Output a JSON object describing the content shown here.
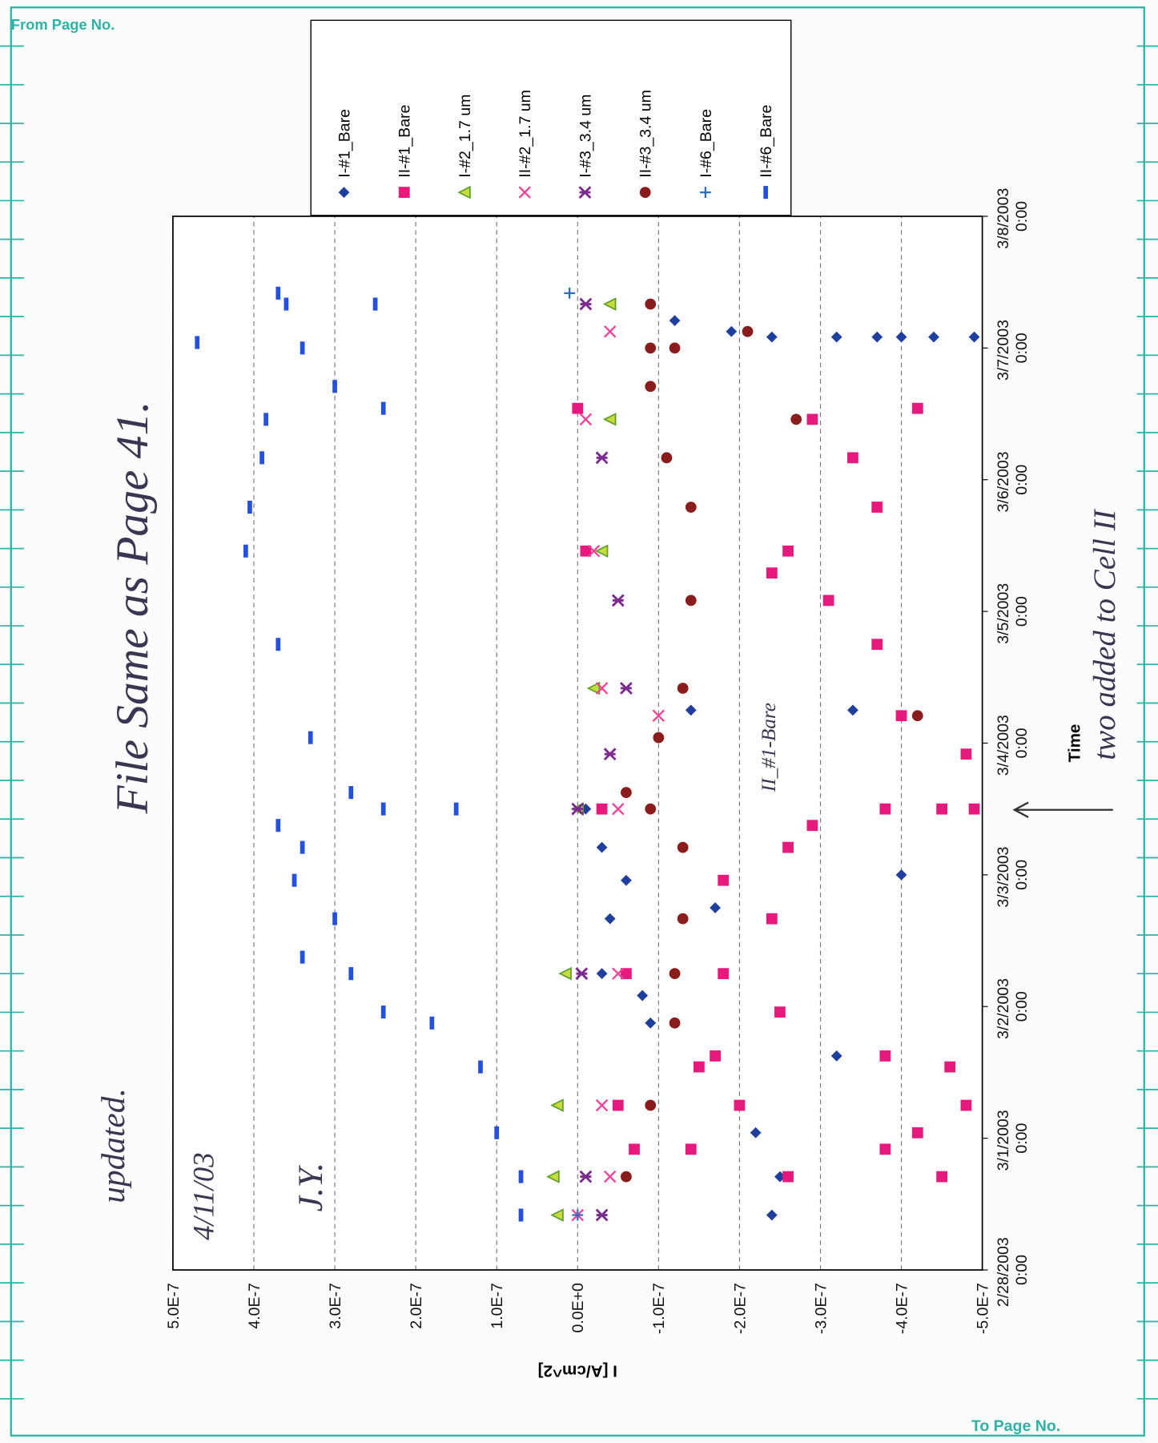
{
  "page": {
    "from_label": "From Page No.",
    "to_label": "To Page No."
  },
  "notes": [
    "File Same as Page 41.",
    "updated.",
    "4/11/03",
    "J.Y.",
    "two added to Cell II",
    "II_#1-Bare"
  ],
  "chart_data": {
    "type": "scatter",
    "x_label": "Time",
    "y_label": "I [A/cm^2]",
    "xlim": [
      "2003-02-28T00:00",
      "2003-03-08T00:00"
    ],
    "xticks": [
      {
        "value": "2003-02-28T00:00",
        "label": "2/28/2003 0:00"
      },
      {
        "value": "2003-03-01T00:00",
        "label": "3/1/2003 0:00"
      },
      {
        "value": "2003-03-02T00:00",
        "label": "3/2/2003 0:00"
      },
      {
        "value": "2003-03-03T00:00",
        "label": "3/3/2003 0:00"
      },
      {
        "value": "2003-03-04T00:00",
        "label": "3/4/2003 0:00"
      },
      {
        "value": "2003-03-05T00:00",
        "label": "3/5/2003 0:00"
      },
      {
        "value": "2003-03-06T00:00",
        "label": "3/6/2003 0:00"
      },
      {
        "value": "2003-03-07T00:00",
        "label": "3/7/2003 0:00"
      },
      {
        "value": "2003-03-08T00:00",
        "label": "3/8/2003 0:00"
      }
    ],
    "ylim": [
      -5e-07,
      5e-07
    ],
    "yticks": [
      {
        "value": 5e-07,
        "label": "5.0E-7"
      },
      {
        "value": 4e-07,
        "label": "4.0E-7"
      },
      {
        "value": 3e-07,
        "label": "3.0E-7"
      },
      {
        "value": 2e-07,
        "label": "2.0E-7"
      },
      {
        "value": 1e-07,
        "label": "1.0E-7"
      },
      {
        "value": 0,
        "label": "0.0E+0"
      },
      {
        "value": -1e-07,
        "label": "-1.0E-7"
      },
      {
        "value": -2e-07,
        "label": "-2.0E-7"
      },
      {
        "value": -3e-07,
        "label": "-3.0E-7"
      },
      {
        "value": -4e-07,
        "label": "-4.0E-7"
      },
      {
        "value": -5e-07,
        "label": "-5.0E-7"
      }
    ],
    "grid": true,
    "series": [
      {
        "name": "I-#1_Bare",
        "color": "#1f3f9f",
        "marker": "diamond",
        "x": [
          "2003-02-28T10:00",
          "2003-02-28T17:00",
          "2003-03-01T01:00",
          "2003-03-01T13:00",
          "2003-03-01T21:00",
          "2003-03-02T02:00",
          "2003-03-02T06:00",
          "2003-03-02T16:00",
          "2003-03-02T23:00",
          "2003-03-03T05:00",
          "2003-03-03T12:00",
          "2003-03-01T15:00",
          "2003-03-02T18:00",
          "2003-03-03T00:00",
          "2003-03-04T06:00",
          "2003-03-04T06:00",
          "2003-03-07T05:00",
          "2003-03-07T03:00",
          "2003-03-07T02:00",
          "2003-03-07T02:00",
          "2003-03-07T02:00",
          "2003-03-07T02:00",
          "2003-03-07T02:00",
          "2003-03-07T02:00"
        ],
        "values": [
          -2.4e-07,
          -2.5e-07,
          -2.2e-07,
          -1.5e-07,
          -9e-08,
          -8e-08,
          -3e-08,
          -4e-08,
          -6e-08,
          -3e-08,
          -1e-08,
          -3.2e-07,
          -1.7e-07,
          -4e-07,
          -1.4e-07,
          -3.4e-07,
          -1.2e-07,
          -1.9e-07,
          -2.4e-07,
          -3.2e-07,
          -3.7e-07,
          -4e-07,
          -4.4e-07,
          -4.9e-07
        ]
      },
      {
        "name": "II-#1_Bare",
        "color": "#e8197d",
        "marker": "square",
        "x": [
          "2003-02-28T17:00",
          "2003-02-28T22:00",
          "2003-03-01T06:00",
          "2003-03-01T13:00",
          "2003-03-01T15:00",
          "2003-03-01T23:00",
          "2003-03-02T06:00",
          "2003-03-02T16:00",
          "2003-03-02T23:00",
          "2003-03-03T05:00",
          "2003-03-03T09:00",
          "2003-03-03T12:00",
          "2003-03-03T12:00",
          "2003-03-03T12:00",
          "2003-03-02T06:00",
          "2003-03-01T06:00",
          "2003-02-28T22:00",
          "2003-03-03T22:00",
          "2003-03-04T05:00",
          "2003-03-04T18:00",
          "2003-03-05T02:00",
          "2003-03-05T11:00",
          "2003-03-05T19:00",
          "2003-03-06T04:00",
          "2003-03-06T11:00",
          "2003-03-06T13:00",
          "2003-03-05T11:00",
          "2003-03-06T13:00",
          "2003-02-28T22:00",
          "2003-02-28T17:00",
          "2003-03-01T13:00",
          "2003-03-01T06:00",
          "2003-03-01T15:00",
          "2003-03-01T01:00",
          "2003-03-03T12:00",
          "2003-03-05T07:00"
        ],
        "values": [
          -2.6e-07,
          -1.4e-07,
          -2e-07,
          -1.5e-07,
          -1.7e-07,
          -2.5e-07,
          -1.8e-07,
          -2.4e-07,
          -1.8e-07,
          -2.6e-07,
          -2.9e-07,
          -3.8e-07,
          -4.5e-07,
          -3e-08,
          -6e-08,
          -5e-08,
          -7e-08,
          -4.8e-07,
          -4e-07,
          -3.7e-07,
          -3.1e-07,
          -2.6e-07,
          -3.7e-07,
          -3.4e-07,
          -2.9e-07,
          -4.2e-07,
          -1e-08,
          0,
          -3.8e-07,
          -4.5e-07,
          -4.6e-07,
          -4.8e-07,
          -3.8e-07,
          -4.2e-07,
          -4.9e-07,
          -2.4e-07
        ]
      },
      {
        "name": "I-#2_1.7 um",
        "color": "#5f9e2c",
        "marker": "triangle",
        "x": [
          "2003-02-28T10:00",
          "2003-02-28T17:00",
          "2003-03-01T06:00",
          "2003-03-02T06:00",
          "2003-03-03T12:00",
          "2003-03-04T10:00",
          "2003-03-05T11:00",
          "2003-03-06T11:00",
          "2003-03-07T08:00"
        ],
        "values": [
          2.5e-08,
          3e-08,
          2.5e-08,
          1.5e-08,
          0,
          -2e-08,
          -3e-08,
          -4e-08,
          -4e-08
        ]
      },
      {
        "name": "II-#2_1.7 um",
        "color": "#f0409a",
        "marker": "x",
        "x": [
          "2003-02-28T10:00",
          "2003-02-28T17:00",
          "2003-03-01T06:00",
          "2003-03-02T06:00",
          "2003-03-03T12:00",
          "2003-03-04T05:00",
          "2003-03-04T10:00",
          "2003-03-05T11:00",
          "2003-03-06T11:00",
          "2003-03-07T03:00"
        ],
        "values": [
          0,
          -4e-08,
          -3e-08,
          -5e-08,
          -5e-08,
          -1e-07,
          -3e-08,
          -2e-08,
          -1e-08,
          -4e-08
        ]
      },
      {
        "name": "I-#3_3.4 um",
        "color": "#7b2a8e",
        "marker": "star",
        "x": [
          "2003-02-28T10:00",
          "2003-02-28T17:00",
          "2003-03-02T06:00",
          "2003-03-03T12:00",
          "2003-03-03T22:00",
          "2003-03-04T10:00",
          "2003-03-05T02:00",
          "2003-03-06T04:00",
          "2003-03-07T08:00"
        ],
        "values": [
          -3e-08,
          -1e-08,
          -5e-09,
          0,
          -4e-08,
          -6e-08,
          -5e-08,
          -3e-08,
          -1e-08
        ]
      },
      {
        "name": "II-#3_3.4 um",
        "color": "#8b1c1c",
        "marker": "circle",
        "x": [
          "2003-02-28T17:00",
          "2003-03-01T06:00",
          "2003-03-01T21:00",
          "2003-03-02T06:00",
          "2003-03-02T16:00",
          "2003-03-03T05:00",
          "2003-03-03T12:00",
          "2003-03-03T15:00",
          "2003-03-04T01:00",
          "2003-03-04T10:00",
          "2003-03-05T02:00",
          "2003-03-05T19:00",
          "2003-03-06T04:00",
          "2003-03-06T17:00",
          "2003-03-07T00:00",
          "2003-03-07T08:00",
          "2003-03-04T05:00",
          "2003-03-06T11:00",
          "2003-03-07T03:00",
          "2003-03-07T00:00"
        ],
        "values": [
          -6e-08,
          -9e-08,
          -1.2e-07,
          -1.2e-07,
          -1.3e-07,
          -1.3e-07,
          -9e-08,
          -6e-08,
          -1e-07,
          -1.3e-07,
          -1.4e-07,
          -1.4e-07,
          -1.1e-07,
          -9e-08,
          -9e-08,
          -9e-08,
          -4.2e-07,
          -2.7e-07,
          -2.1e-07,
          -1.2e-07
        ]
      },
      {
        "name": "I-#6_Bare",
        "color": "#2a6fc0",
        "marker": "plus",
        "x": [
          "2003-02-28T10:00",
          "2003-03-07T10:00"
        ],
        "values": [
          0,
          1e-08
        ]
      },
      {
        "name": "II-#6_Bare",
        "color": "#2450e0",
        "marker": "dash",
        "x": [
          "2003-02-28T10:00",
          "2003-02-28T17:00",
          "2003-03-01T01:00",
          "2003-03-01T13:00",
          "2003-03-01T21:00",
          "2003-03-01T23:00",
          "2003-03-02T06:00",
          "2003-03-02T09:00",
          "2003-03-02T16:00",
          "2003-03-02T23:00",
          "2003-03-03T05:00",
          "2003-03-03T09:00",
          "2003-03-03T12:00",
          "2003-03-03T12:00",
          "2003-03-03T15:00",
          "2003-03-04T01:00",
          "2003-03-04T18:00",
          "2003-03-05T11:00",
          "2003-03-05T19:00",
          "2003-03-06T04:00",
          "2003-03-06T11:00",
          "2003-03-06T13:00",
          "2003-03-06T17:00",
          "2003-03-07T00:00",
          "2003-03-07T08:00",
          "2003-03-07T10:00",
          "2003-03-07T01:00",
          "2003-03-07T08:00"
        ],
        "values": [
          7e-08,
          7e-08,
          1e-07,
          1.2e-07,
          1.8e-07,
          2.4e-07,
          2.8e-07,
          3.4e-07,
          3e-07,
          3.5e-07,
          3.4e-07,
          3.7e-07,
          2.4e-07,
          1.5e-07,
          2.8e-07,
          3.3e-07,
          3.7e-07,
          4.1e-07,
          4.05e-07,
          3.9e-07,
          3.85e-07,
          2.4e-07,
          3e-07,
          3.4e-07,
          3.6e-07,
          3.7e-07,
          4.7e-07,
          2.5e-07
        ]
      }
    ]
  }
}
